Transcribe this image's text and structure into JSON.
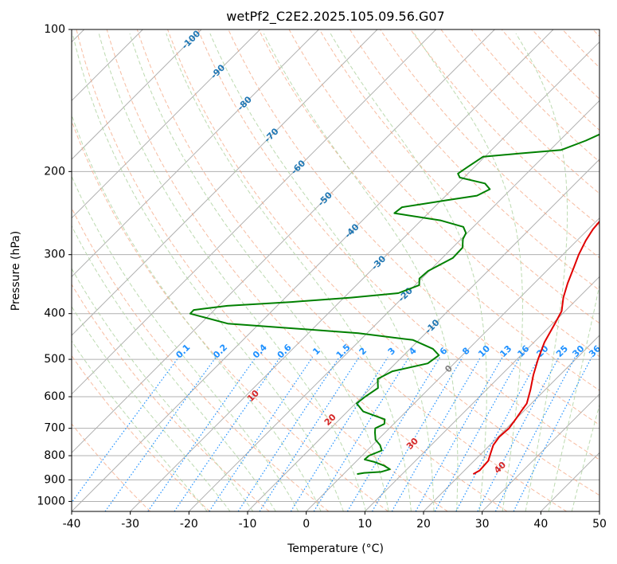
{
  "chart_data": {
    "type": "line",
    "title": "wetPf2_C2E2.2025.105.09.56.G07",
    "xlabel": "Temperature (°C)",
    "ylabel": "Pressure (hPa)",
    "xlim": [
      -40,
      50
    ],
    "ylim": [
      1050,
      100
    ],
    "y_scale": "log",
    "grid": true,
    "x_ticks": [
      -40,
      -30,
      -20,
      -10,
      0,
      10,
      20,
      30,
      40,
      50
    ],
    "y_ticks": [
      100,
      200,
      300,
      400,
      500,
      600,
      700,
      800,
      900,
      1000
    ],
    "colors": {
      "temperature": "#e00000",
      "dewpoint": "#008000",
      "isotherm_labels": "#1f77b4",
      "dry_adiabat_labels": "#d62728",
      "mixing_ratio_labels": "#1e90ff",
      "zero_isotherm_label": "#808080"
    },
    "isotherm_labels": [
      "-100",
      "-90",
      "-80",
      "-70",
      "-60",
      "-50",
      "-40",
      "-30",
      "-20",
      "-10"
    ],
    "zero_isotherm_label": "0",
    "dry_adiabat_labels": [
      "10",
      "20",
      "30",
      "40"
    ],
    "mixing_ratio_labels": [
      "0.1",
      "0.2",
      "0.4",
      "0.6",
      "1",
      "1.5",
      "2",
      "3",
      "4",
      "6",
      "8",
      "10",
      "13",
      "16",
      "20",
      "25",
      "30",
      "36"
    ],
    "series": [
      {
        "kind": "temperature",
        "points": [
          [
            22.1,
            875
          ],
          [
            22.6,
            860
          ],
          [
            22.4,
            820
          ],
          [
            21.5,
            790
          ],
          [
            20.6,
            760
          ],
          [
            20.2,
            730
          ],
          [
            20.4,
            700
          ],
          [
            20.0,
            670
          ],
          [
            19.6,
            645
          ],
          [
            19.2,
            620
          ],
          [
            17.5,
            580
          ],
          [
            15.5,
            540
          ],
          [
            13.6,
            500
          ],
          [
            11.8,
            460
          ],
          [
            10.4,
            420
          ],
          [
            9.4,
            395
          ],
          [
            7.4,
            370
          ],
          [
            5.7,
            345
          ],
          [
            4.1,
            320
          ],
          [
            2.7,
            300
          ],
          [
            1.5,
            280
          ],
          [
            0.8,
            265
          ],
          [
            0.6,
            255
          ],
          [
            1.0,
            245
          ],
          [
            1.6,
            235
          ],
          [
            2.2,
            225
          ],
          [
            3.0,
            215
          ],
          [
            4.2,
            205
          ],
          [
            5.5,
            195
          ],
          [
            6.3,
            185
          ],
          [
            6.5,
            175
          ],
          [
            6.3,
            165
          ],
          [
            6.1,
            155
          ],
          [
            6.1,
            145
          ],
          [
            6.3,
            135
          ],
          [
            6.5,
            125
          ],
          [
            6.5,
            118
          ],
          [
            6.7,
            112
          ],
          [
            6.9,
            106
          ],
          [
            7.1,
            100
          ]
        ]
      },
      {
        "kind": "dewpoint",
        "points": [
          [
            2.3,
            875
          ],
          [
            3.3,
            870
          ],
          [
            6.0,
            866
          ],
          [
            7.1,
            855
          ],
          [
            5.5,
            840
          ],
          [
            3.2,
            825
          ],
          [
            1.1,
            815
          ],
          [
            1.2,
            800
          ],
          [
            2.5,
            780
          ],
          [
            1.3,
            760
          ],
          [
            -0.4,
            740
          ],
          [
            -1.7,
            715
          ],
          [
            -2.4,
            700
          ],
          [
            -1.6,
            685
          ],
          [
            -2.3,
            670
          ],
          [
            -7.3,
            645
          ],
          [
            -9.8,
            620
          ],
          [
            -9.5,
            600
          ],
          [
            -8.8,
            575
          ],
          [
            -10.4,
            550
          ],
          [
            -9.2,
            530
          ],
          [
            -4.5,
            510
          ],
          [
            -4.0,
            490
          ],
          [
            -6.1,
            475
          ],
          [
            -11.0,
            455
          ],
          [
            -21.5,
            440
          ],
          [
            -45.4,
            420
          ],
          [
            -53.5,
            400
          ],
          [
            -53.5,
            393
          ],
          [
            -48.5,
            385
          ],
          [
            -38.2,
            378
          ],
          [
            -28.8,
            370
          ],
          [
            -21.5,
            362
          ],
          [
            -19.3,
            348
          ],
          [
            -20.4,
            337
          ],
          [
            -20.2,
            325
          ],
          [
            -18.2,
            305
          ],
          [
            -18.3,
            290
          ],
          [
            -19.7,
            278
          ],
          [
            -20.2,
            270
          ],
          [
            -21.7,
            262
          ],
          [
            -26.6,
            254
          ],
          [
            -35.8,
            245
          ],
          [
            -35.5,
            238
          ],
          [
            -29.0,
            230
          ],
          [
            -24.7,
            225
          ],
          [
            -23.6,
            218
          ],
          [
            -25.4,
            212
          ],
          [
            -30.7,
            206
          ],
          [
            -31.7,
            202
          ],
          [
            -31.2,
            196
          ],
          [
            -30.3,
            186
          ],
          [
            -24.4,
            183
          ],
          [
            -18.1,
            180
          ],
          [
            -15.5,
            172
          ],
          [
            -13.0,
            162
          ],
          [
            -11.2,
            152
          ],
          [
            -9.8,
            142
          ],
          [
            -7.6,
            132
          ],
          [
            -5.7,
            124
          ],
          [
            -4.2,
            118
          ],
          [
            -2.5,
            112
          ],
          [
            -1.0,
            105
          ],
          [
            -0.2,
            100
          ]
        ]
      }
    ]
  }
}
